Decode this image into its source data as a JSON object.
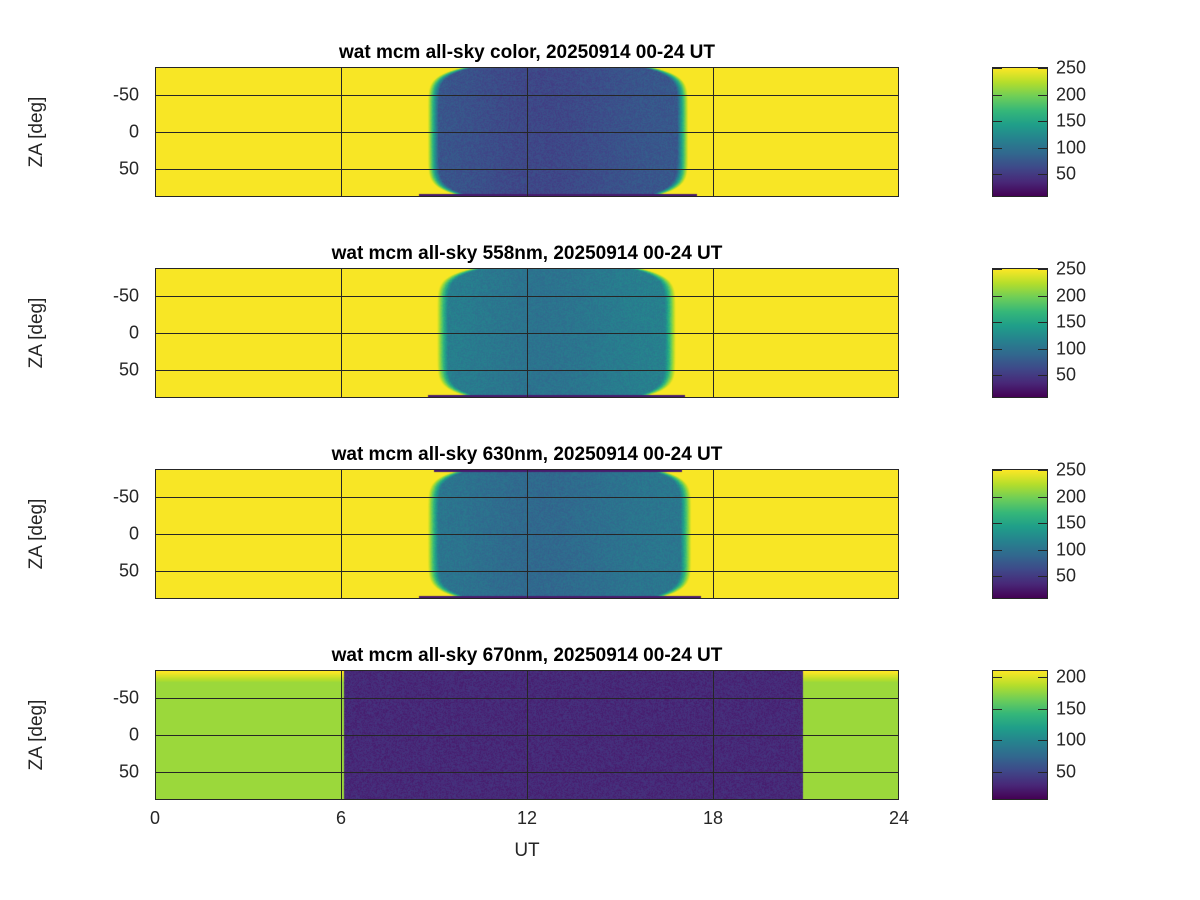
{
  "chart_data": [
    {
      "type": "heatmap",
      "title": "wat mcm all-sky color, 20250914 00-24 UT",
      "ylabel": "ZA [deg]",
      "xlabel": "",
      "xlim": [
        0,
        24
      ],
      "ylim": [
        -87,
        87
      ],
      "y_reversed": true,
      "xticks": [
        0,
        6,
        12,
        18,
        24
      ],
      "yticks": [
        "-50",
        "0",
        "50"
      ],
      "ytick_values": [
        -50,
        0,
        50
      ],
      "grid": true,
      "colorbar": {
        "range": [
          7,
          252
        ],
        "ticks": [
          "50",
          "100",
          "150",
          "200",
          "250"
        ],
        "tick_values": [
          50,
          100,
          150,
          200,
          250
        ]
      },
      "day_value": 250,
      "night_value": 75,
      "night_start_ut": 8.8,
      "night_end_ut": 17.2
    },
    {
      "type": "heatmap",
      "title": "wat mcm all-sky 558nm, 20250914 00-24 UT",
      "ylabel": "ZA [deg]",
      "xlabel": "",
      "xlim": [
        0,
        24
      ],
      "ylim": [
        -87,
        87
      ],
      "y_reversed": true,
      "xticks": [
        0,
        6,
        12,
        18,
        24
      ],
      "yticks": [
        "-50",
        "0",
        "50"
      ],
      "ytick_values": [
        -50,
        0,
        50
      ],
      "grid": true,
      "colorbar": {
        "range": [
          7,
          252
        ],
        "ticks": [
          "50",
          "100",
          "150",
          "200",
          "250"
        ],
        "tick_values": [
          50,
          100,
          150,
          200,
          250
        ]
      },
      "day_value": 250,
      "night_value": 115,
      "night_start_ut": 9.1,
      "night_end_ut": 16.8
    },
    {
      "type": "heatmap",
      "title": "wat mcm all-sky 630nm, 20250914 00-24 UT",
      "ylabel": "ZA [deg]",
      "xlabel": "",
      "xlim": [
        0,
        24
      ],
      "ylim": [
        -87,
        87
      ],
      "y_reversed": true,
      "xticks": [
        0,
        6,
        12,
        18,
        24
      ],
      "yticks": [
        "-50",
        "0",
        "50"
      ],
      "ytick_values": [
        -50,
        0,
        50
      ],
      "grid": true,
      "colorbar": {
        "range": [
          7,
          252
        ],
        "ticks": [
          "50",
          "100",
          "150",
          "200",
          "250"
        ],
        "tick_values": [
          50,
          100,
          150,
          200,
          250
        ]
      },
      "day_value": 250,
      "night_value": 105,
      "night_start_ut": 8.8,
      "night_end_ut": 17.3
    },
    {
      "type": "heatmap",
      "title": "wat mcm all-sky 670nm, 20250914 00-24 UT",
      "ylabel": "ZA [deg]",
      "xlabel": "UT",
      "xlim": [
        0,
        24
      ],
      "ylim": [
        -87,
        87
      ],
      "y_reversed": true,
      "xticks": [
        0,
        6,
        12,
        18,
        24
      ],
      "xtick_labels": [
        "0",
        "6",
        "12",
        "18",
        "24"
      ],
      "yticks": [
        "-50",
        "0",
        "50"
      ],
      "ytick_values": [
        -50,
        0,
        50
      ],
      "grid": true,
      "colorbar": {
        "range": [
          6,
          211
        ],
        "ticks": [
          "50",
          "100",
          "150",
          "200"
        ],
        "tick_values": [
          50,
          100,
          150,
          200
        ]
      },
      "day_value": 180,
      "night_value": 30,
      "night_start_ut": 6.1,
      "night_end_ut": 20.9
    }
  ]
}
